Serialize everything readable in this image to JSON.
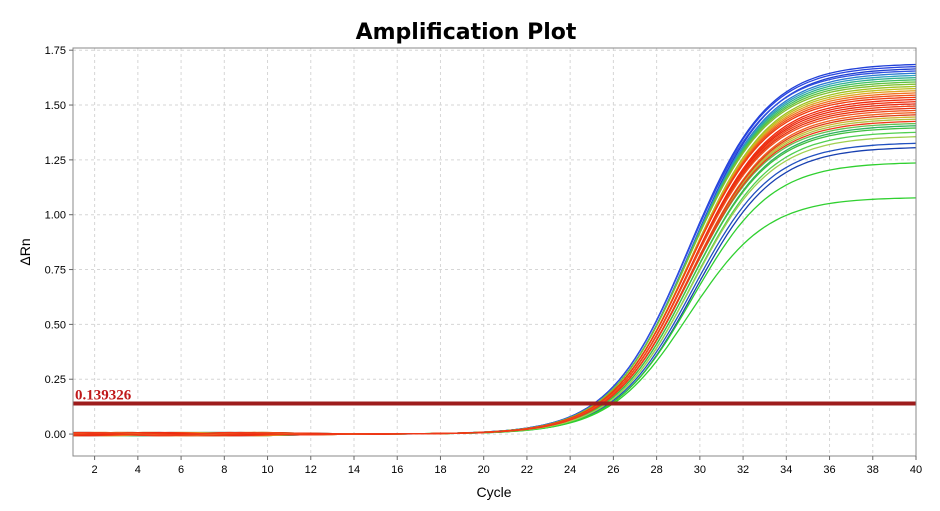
{
  "chart_data": {
    "type": "line",
    "title": "Amplification Plot",
    "xlabel": "Cycle",
    "ylabel": "ΔRn",
    "xlim": [
      1,
      40
    ],
    "ylim": [
      -0.1,
      1.76
    ],
    "xticks": [
      2,
      4,
      6,
      8,
      10,
      12,
      14,
      16,
      18,
      20,
      22,
      24,
      26,
      28,
      30,
      32,
      34,
      36,
      38,
      40
    ],
    "xtick_labels": [
      "2",
      "4",
      "6",
      "8",
      "10",
      "12",
      "14",
      "16",
      "18",
      "20",
      "22",
      "24",
      "26",
      "28",
      "30",
      "32",
      "34",
      "36",
      "38",
      "40"
    ],
    "yticks": [
      0,
      0.25,
      0.5,
      0.75,
      1.0,
      1.25,
      1.5,
      1.75
    ],
    "ytick_labels": [
      "0.00",
      "0.25",
      "0.50",
      "0.75",
      "1.00",
      "1.25",
      "1.50",
      "1.75"
    ],
    "grid": true,
    "threshold": {
      "value": 0.139326,
      "label": "0.139326",
      "color": "#9e1c1c"
    },
    "curve_model": "sigmoid",
    "series": [
      {
        "plateau": 1.69,
        "ct": 25.1,
        "color": "#2040d8"
      },
      {
        "plateau": 1.68,
        "ct": 25.1,
        "color": "#2844e0"
      },
      {
        "plateau": 1.67,
        "ct": 25.2,
        "color": "#1f3fd0"
      },
      {
        "plateau": 1.66,
        "ct": 25.1,
        "color": "#3050e0"
      },
      {
        "plateau": 1.65,
        "ct": 25.2,
        "color": "#2a7ad0"
      },
      {
        "plateau": 1.64,
        "ct": 25.2,
        "color": "#30a0c0"
      },
      {
        "plateau": 1.63,
        "ct": 25.2,
        "color": "#30b090"
      },
      {
        "plateau": 1.62,
        "ct": 25.2,
        "color": "#40c060"
      },
      {
        "plateau": 1.61,
        "ct": 25.2,
        "color": "#60c040"
      },
      {
        "plateau": 1.6,
        "ct": 25.2,
        "color": "#80c030"
      },
      {
        "plateau": 1.59,
        "ct": 25.3,
        "color": "#a0c020"
      },
      {
        "plateau": 1.58,
        "ct": 25.3,
        "color": "#c0c020"
      },
      {
        "plateau": 1.57,
        "ct": 25.3,
        "color": "#e0a020"
      },
      {
        "plateau": 1.56,
        "ct": 25.3,
        "color": "#f07020"
      },
      {
        "plateau": 1.55,
        "ct": 25.3,
        "color": "#f05018"
      },
      {
        "plateau": 1.54,
        "ct": 25.3,
        "color": "#f03a10"
      },
      {
        "plateau": 1.53,
        "ct": 25.4,
        "color": "#ee2a10"
      },
      {
        "plateau": 1.52,
        "ct": 25.4,
        "color": "#f03010"
      },
      {
        "plateau": 1.51,
        "ct": 25.4,
        "color": "#e82810"
      },
      {
        "plateau": 1.5,
        "ct": 25.4,
        "color": "#f04418"
      },
      {
        "plateau": 1.49,
        "ct": 25.4,
        "color": "#e83010"
      },
      {
        "plateau": 1.48,
        "ct": 25.4,
        "color": "#f05020"
      },
      {
        "plateau": 1.47,
        "ct": 25.5,
        "color": "#f06020"
      },
      {
        "plateau": 1.46,
        "ct": 25.5,
        "color": "#e04018"
      },
      {
        "plateau": 1.45,
        "ct": 25.5,
        "color": "#d0b030"
      },
      {
        "plateau": 1.44,
        "ct": 25.5,
        "color": "#b0c040"
      },
      {
        "plateau": 1.43,
        "ct": 25.5,
        "color": "#f03818"
      },
      {
        "plateau": 1.42,
        "ct": 25.5,
        "color": "#60c050"
      },
      {
        "plateau": 1.41,
        "ct": 25.6,
        "color": "#30b060"
      },
      {
        "plateau": 1.4,
        "ct": 25.6,
        "color": "#40c040"
      },
      {
        "plateau": 1.38,
        "ct": 25.7,
        "color": "#50d050"
      },
      {
        "plateau": 1.36,
        "ct": 25.7,
        "color": "#a0d050"
      },
      {
        "plateau": 1.33,
        "ct": 25.8,
        "color": "#2050c0"
      },
      {
        "plateau": 1.31,
        "ct": 25.9,
        "color": "#1840b0"
      },
      {
        "plateau": 1.24,
        "ct": 25.9,
        "color": "#30d030"
      },
      {
        "plateau": 1.08,
        "ct": 26.0,
        "color": "#30d030"
      }
    ]
  }
}
